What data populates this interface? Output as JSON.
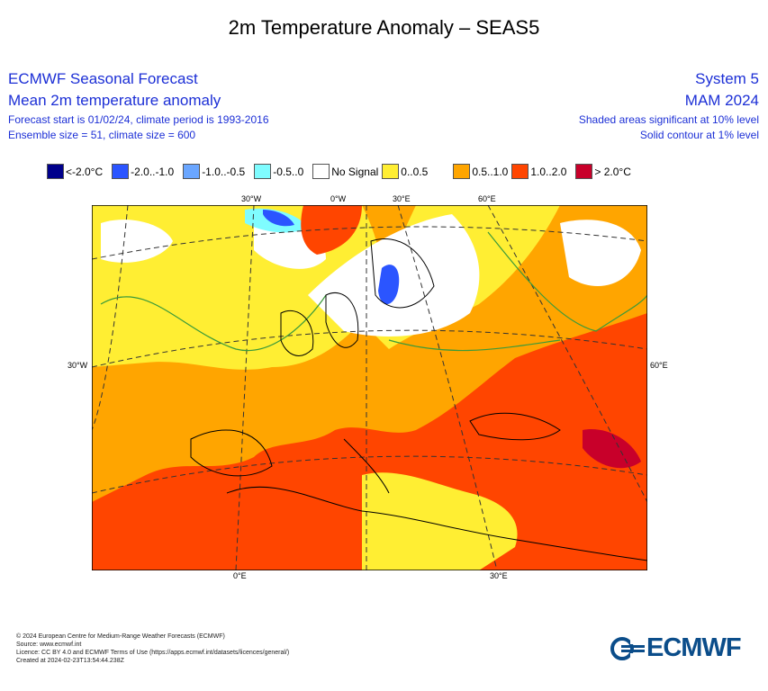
{
  "title": "2m Temperature Anomaly – SEAS5",
  "header": {
    "left_title": "ECMWF Seasonal Forecast",
    "left_subtitle": "Mean 2m temperature anomaly",
    "left_line1": "Forecast start is 01/02/24, climate period is 1993-2016",
    "left_line2": "Ensemble size = 51, climate size = 600",
    "right_title": "System 5",
    "right_subtitle": "MAM 2024",
    "right_line1": "Shaded areas significant at 10% level",
    "right_line2": "Solid contour at 1% level"
  },
  "legend": [
    {
      "label": "<-2.0°C",
      "color": "#00008b"
    },
    {
      "label": "-2.0..-1.0",
      "color": "#2b55ff"
    },
    {
      "label": "-1.0..-0.5",
      "color": "#6aa6ff"
    },
    {
      "label": "-0.5..0",
      "color": "#7ffcff"
    },
    {
      "label": "No Signal",
      "color": "#ffffff"
    },
    {
      "label": "0..0.5",
      "color": "#ffee33"
    },
    {
      "label": "0.5..1.0",
      "color": "#ffa500"
    },
    {
      "label": "1.0..2.0",
      "color": "#ff4500"
    },
    {
      "label": "> 2.0°C",
      "color": "#c8002a"
    }
  ],
  "map_labels": {
    "top": [
      "30°W",
      "0°W",
      "30°E",
      "60°E"
    ],
    "left": "30°W",
    "right": "60°E",
    "bottom": [
      "0°E",
      "30°E"
    ]
  },
  "footer": [
    "© 2024 European Centre for Medium-Range Weather Forecasts (ECMWF)",
    "Source: www.ecmwf.int",
    "Licence: CC BY 4.0 and ECMWF Terms of Use (https://apps.ecmwf.int/datasets/licences/general/)",
    "Created at 2024-02-23T13:54:44.238Z"
  ],
  "logo": "ECMWF"
}
